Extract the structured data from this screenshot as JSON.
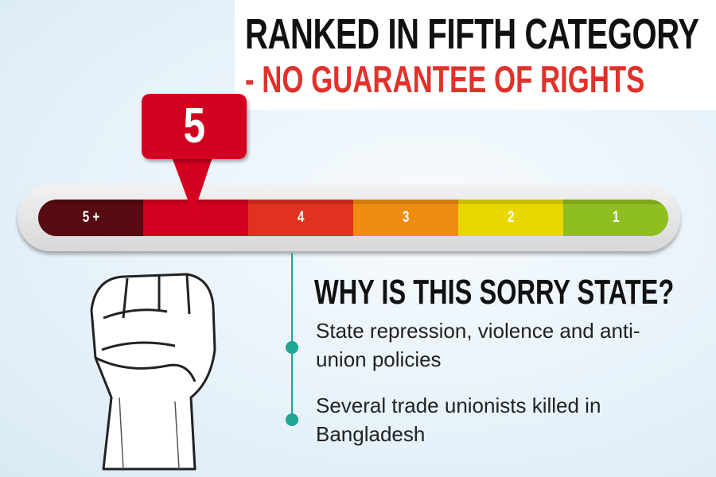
{
  "header": {
    "title": "RANKED IN FIFTH CATEGORY",
    "subtitle": "- NO GUARANTEE OF RIGHTS"
  },
  "rating": {
    "current": "5",
    "scale": [
      {
        "label": "5 +",
        "color": "#560a12"
      },
      {
        "label": "",
        "color": "#d4001f"
      },
      {
        "label": "4",
        "color": "#e0321e"
      },
      {
        "label": "3",
        "color": "#ee8d12"
      },
      {
        "label": "2",
        "color": "#e8d800"
      },
      {
        "label": "1",
        "color": "#8fbf1f"
      }
    ]
  },
  "reasons": {
    "heading": "WHY IS THIS SORRY STATE?",
    "items": [
      "State repression, violence and anti-union policies",
      "Several trade unionists killed in Bangladesh"
    ]
  },
  "colors": {
    "accent_red": "#e0312b",
    "teal": "#1fa596"
  }
}
